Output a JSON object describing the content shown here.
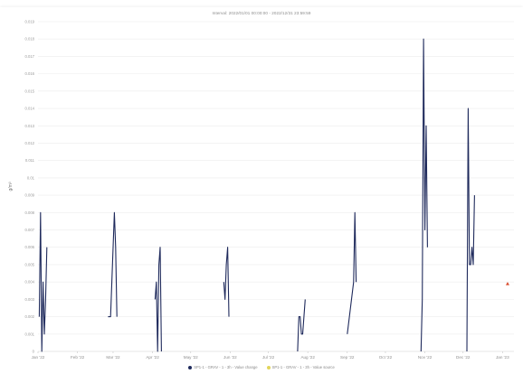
{
  "chart_data": {
    "type": "line",
    "title": "Interval: 2022/01/01 00:00:00 - 2022/12/31 23:59:59",
    "ylabel": "g/m³",
    "xlabel": "",
    "ylim": [
      0.0,
      0.019
    ],
    "y_ticks": [
      "0",
      "0.001",
      "0.002",
      "0.003",
      "0.004",
      "0.005",
      "0.006",
      "0.007",
      "0.008",
      "0.009",
      "0.01",
      "0.011",
      "0.012",
      "0.013",
      "0.014",
      "0.015",
      "0.016",
      "0.017",
      "0.018",
      "0.019"
    ],
    "x_ticks": [
      {
        "label": "Jan '22",
        "date": "2022-01-01"
      },
      {
        "label": "Feb '22",
        "date": "2022-02-01"
      },
      {
        "label": "Mar '22",
        "date": "2022-03-01"
      },
      {
        "label": "Apr '22",
        "date": "2022-04-01"
      },
      {
        "label": "May '22",
        "date": "2022-05-01"
      },
      {
        "label": "Jun '22",
        "date": "2022-06-01"
      },
      {
        "label": "Jul '22",
        "date": "2022-07-01"
      },
      {
        "label": "Aug '22",
        "date": "2022-08-01"
      },
      {
        "label": "Sep '22",
        "date": "2022-09-01"
      },
      {
        "label": "Oct '22",
        "date": "2022-10-01"
      },
      {
        "label": "Nov '22",
        "date": "2022-11-01"
      },
      {
        "label": "Dec '22",
        "date": "2022-12-01"
      },
      {
        "label": "Jan '23",
        "date": "2023-01-01"
      }
    ],
    "grid": true,
    "legend_position": "bottom",
    "series": [
      {
        "name": "SP1-1 - GRAV - 1 - 3h - Value change",
        "color": "#1f2a5c",
        "segments": [
          [
            [
              "2022-01-02",
              0.002
            ],
            [
              "2022-01-03",
              0.008
            ],
            [
              "2022-01-04",
              0.0
            ],
            [
              "2022-01-05",
              0.004
            ],
            [
              "2022-01-06",
              0.001
            ],
            [
              "2022-01-07",
              0.003
            ],
            [
              "2022-01-08",
              0.006
            ]
          ],
          [
            [
              "2022-02-25",
              0.002
            ],
            [
              "2022-02-27",
              0.002
            ],
            [
              "2022-03-01",
              0.006
            ],
            [
              "2022-03-02",
              0.008
            ],
            [
              "2022-03-03",
              0.006
            ],
            [
              "2022-03-04",
              0.002
            ]
          ],
          [
            [
              "2022-04-03",
              0.003
            ],
            [
              "2022-04-04",
              0.004
            ],
            [
              "2022-04-05",
              0.0
            ],
            [
              "2022-04-06",
              0.005
            ],
            [
              "2022-04-07",
              0.006
            ],
            [
              "2022-04-08",
              0.0
            ]
          ],
          [
            [
              "2022-05-27",
              0.004
            ],
            [
              "2022-05-28",
              0.003
            ],
            [
              "2022-05-29",
              0.005
            ],
            [
              "2022-05-30",
              0.006
            ],
            [
              "2022-05-31",
              0.002
            ]
          ],
          [
            [
              "2022-07-24",
              0.0
            ],
            [
              "2022-07-25",
              0.002
            ],
            [
              "2022-07-26",
              0.002
            ],
            [
              "2022-07-27",
              0.001
            ],
            [
              "2022-07-28",
              0.001
            ],
            [
              "2022-07-30",
              0.003
            ]
          ],
          [
            [
              "2022-09-01",
              0.001
            ],
            [
              "2022-09-06",
              0.004
            ],
            [
              "2022-09-07",
              0.008
            ],
            [
              "2022-09-08",
              0.004
            ]
          ],
          [
            [
              "2022-10-29",
              0.0
            ],
            [
              "2022-10-30",
              0.003
            ],
            [
              "2022-10-31",
              0.018
            ],
            [
              "2022-11-01",
              0.007
            ],
            [
              "2022-11-02",
              0.013
            ],
            [
              "2022-11-03",
              0.006
            ]
          ],
          [
            [
              "2022-12-04",
              0.0
            ],
            [
              "2022-12-05",
              0.014
            ],
            [
              "2022-12-06",
              0.005
            ],
            [
              "2022-12-07",
              0.005
            ],
            [
              "2022-12-08",
              0.006
            ],
            [
              "2022-12-09",
              0.005
            ],
            [
              "2022-12-10",
              0.009
            ]
          ]
        ]
      },
      {
        "name": "SP1-1 - GRAV - 1 - 3h - Value source",
        "color": "#e2d55a",
        "segments": []
      }
    ],
    "markers": [
      {
        "date": "2023-01-05",
        "value": 0.0039,
        "color": "#d94a2a"
      }
    ]
  }
}
